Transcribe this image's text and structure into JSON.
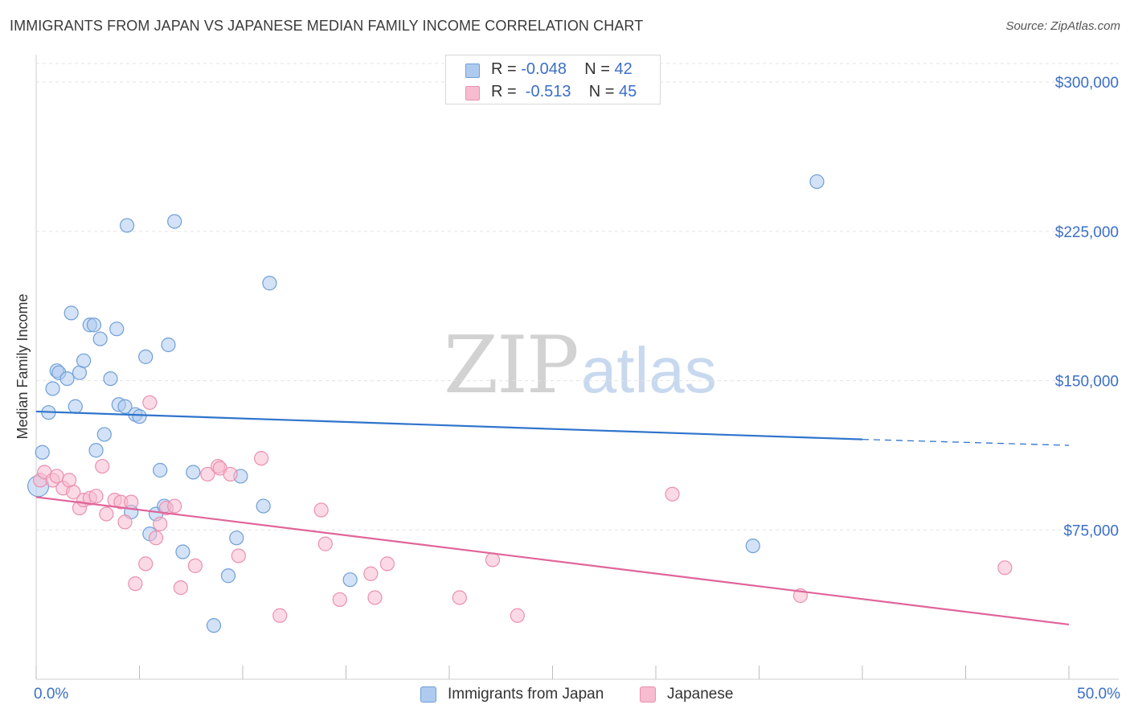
{
  "header": {
    "title": "IMMIGRANTS FROM JAPAN VS JAPANESE MEDIAN FAMILY INCOME CORRELATION CHART",
    "source": "Source: ZipAtlas.com"
  },
  "watermark": {
    "zip": "ZIP",
    "atlas": "atlas"
  },
  "legend": {
    "rows": [
      {
        "r_label": "R = ",
        "r_value": "-0.048",
        "n_label": "N = ",
        "n_value": "42"
      },
      {
        "r_label": "R = ",
        "r_value": " -0.513",
        "n_label": "N = ",
        "n_value": "45"
      }
    ]
  },
  "colors": {
    "blue_fill": "#aecbef",
    "blue_stroke": "#6f9fd8",
    "blue_line": "#2f74cc",
    "pink_fill": "#f7bcd0",
    "pink_stroke": "#ec8fb0",
    "pink_line": "#e0649a",
    "tick_label": "#3b6fc8",
    "grid": "#e3e3e3"
  },
  "chart_data": {
    "type": "scatter",
    "title": "IMMIGRANTS FROM JAPAN VS JAPANESE MEDIAN FAMILY INCOME CORRELATION CHART",
    "xlabel": "",
    "ylabel": "Median Family Income",
    "xlim": [
      0,
      50
    ],
    "ylim": [
      0,
      315000
    ],
    "x_tick_labels": [
      "0.0%",
      "50.0%"
    ],
    "y_ticks": [
      {
        "value": 75000,
        "label": "$75,000"
      },
      {
        "value": 150000,
        "label": "$150,000"
      },
      {
        "value": 225000,
        "label": "$225,000"
      },
      {
        "value": 300000,
        "label": "$300,000"
      }
    ],
    "grid": "horizontal-dashed",
    "legend_position": "top-center",
    "series": [
      {
        "name": "Immigrants from Japan",
        "color": "blue",
        "r": "-0.048",
        "n": "42",
        "points": [
          [
            0.3,
            114000
          ],
          [
            0.6,
            134000
          ],
          [
            0.8,
            146000
          ],
          [
            1.0,
            155000
          ],
          [
            1.1,
            154000
          ],
          [
            1.5,
            151000
          ],
          [
            1.7,
            184000
          ],
          [
            1.9,
            137000
          ],
          [
            2.1,
            154000
          ],
          [
            2.3,
            160000
          ],
          [
            2.6,
            178000
          ],
          [
            2.8,
            178000
          ],
          [
            2.9,
            115000
          ],
          [
            3.1,
            171000
          ],
          [
            3.3,
            123000
          ],
          [
            3.6,
            151000
          ],
          [
            3.9,
            176000
          ],
          [
            4.0,
            138000
          ],
          [
            4.3,
            137000
          ],
          [
            4.4,
            228000
          ],
          [
            4.6,
            84000
          ],
          [
            4.8,
            133000
          ],
          [
            5.0,
            132000
          ],
          [
            5.3,
            162000
          ],
          [
            5.5,
            73000
          ],
          [
            5.8,
            83000
          ],
          [
            6.0,
            105000
          ],
          [
            6.2,
            87000
          ],
          [
            6.4,
            168000
          ],
          [
            6.7,
            230000
          ],
          [
            7.1,
            64000
          ],
          [
            7.6,
            104000
          ],
          [
            8.6,
            27000
          ],
          [
            9.3,
            52000
          ],
          [
            9.7,
            71000
          ],
          [
            9.9,
            102000
          ],
          [
            11.0,
            87000
          ],
          [
            11.3,
            199000
          ],
          [
            15.2,
            50000
          ],
          [
            34.7,
            67000
          ],
          [
            37.8,
            250000
          ],
          [
            0.1,
            97000
          ]
        ],
        "trend": {
          "x0": 0,
          "y0": 134500,
          "x1": 40,
          "y1": 120500,
          "dash_to_x": 50,
          "dash_to_y": 117500
        }
      },
      {
        "name": "Japanese",
        "color": "pink",
        "r": "-0.513",
        "n": "45",
        "points": [
          [
            0.2,
            100000
          ],
          [
            0.4,
            104000
          ],
          [
            0.8,
            100000
          ],
          [
            1.0,
            102000
          ],
          [
            1.3,
            96000
          ],
          [
            1.6,
            100000
          ],
          [
            1.8,
            94000
          ],
          [
            2.1,
            86000
          ],
          [
            2.3,
            90000
          ],
          [
            2.6,
            91000
          ],
          [
            2.9,
            92000
          ],
          [
            3.2,
            107000
          ],
          [
            3.4,
            83000
          ],
          [
            3.8,
            90000
          ],
          [
            4.1,
            89000
          ],
          [
            4.3,
            79000
          ],
          [
            4.6,
            89000
          ],
          [
            4.8,
            48000
          ],
          [
            5.3,
            58000
          ],
          [
            5.5,
            139000
          ],
          [
            5.8,
            71000
          ],
          [
            6.0,
            78000
          ],
          [
            6.3,
            86000
          ],
          [
            6.7,
            87000
          ],
          [
            7.0,
            46000
          ],
          [
            7.7,
            57000
          ],
          [
            8.3,
            103000
          ],
          [
            8.8,
            107000
          ],
          [
            8.9,
            106000
          ],
          [
            9.4,
            103000
          ],
          [
            9.8,
            62000
          ],
          [
            10.9,
            111000
          ],
          [
            11.8,
            32000
          ],
          [
            13.8,
            85000
          ],
          [
            14.0,
            68000
          ],
          [
            14.7,
            40000
          ],
          [
            16.2,
            53000
          ],
          [
            16.4,
            41000
          ],
          [
            17.0,
            58000
          ],
          [
            20.5,
            41000
          ],
          [
            22.1,
            60000
          ],
          [
            23.3,
            32000
          ],
          [
            30.8,
            93000
          ],
          [
            37.0,
            42000
          ],
          [
            46.9,
            56000
          ]
        ],
        "trend": {
          "x0": 0,
          "y0": 91500,
          "x1": 50,
          "y1": 27500
        }
      }
    ]
  },
  "bottom_legend": {
    "items": [
      {
        "label": "Immigrants from Japan"
      },
      {
        "label": "Japanese"
      }
    ]
  }
}
